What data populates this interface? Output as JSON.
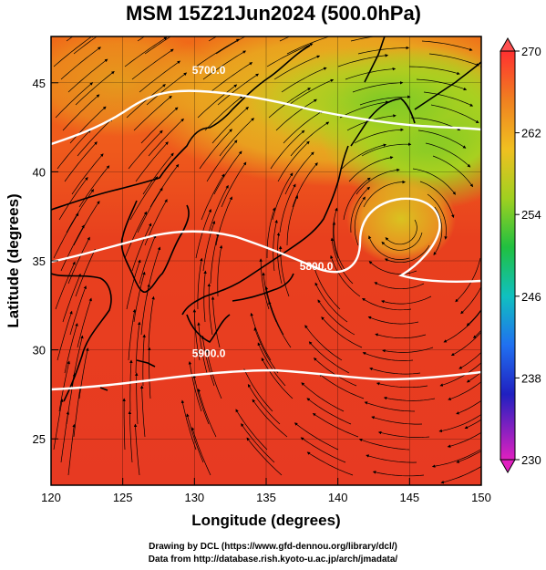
{
  "title": "MSM 15Z21Jun2024 (500.0hPa)",
  "x_axis_label": "Longitude (degrees)",
  "y_axis_label": "Latitude  (degrees)",
  "credits": [
    "Drawing by DCL (https://www.gfd-dennou.org/library/dcl/)",
    "Data from http://database.rish.kyoto-u.ac.jp/arch/jmadata/"
  ],
  "map_data": {
    "lon_range": [
      120,
      150
    ],
    "lat_range": [
      22.4,
      47.6
    ],
    "lon_ticks": [
      {
        "value": 120,
        "label": "120"
      },
      {
        "value": 125,
        "label": "125"
      },
      {
        "value": 130,
        "label": "130"
      },
      {
        "value": 135,
        "label": "135"
      },
      {
        "value": 140,
        "label": "140"
      },
      {
        "value": 145,
        "label": "145"
      },
      {
        "value": 150,
        "label": "150"
      }
    ],
    "lat_ticks": [
      {
        "value": 25,
        "label": "25"
      },
      {
        "value": 30,
        "label": "30"
      },
      {
        "value": 35,
        "label": "35"
      },
      {
        "value": 40,
        "label": "40"
      },
      {
        "value": 45,
        "label": "45"
      }
    ],
    "colorbar": {
      "min": 230,
      "max": 270,
      "labels": [
        "270",
        "262",
        "254",
        "246",
        "238",
        "230"
      ],
      "label_values": [
        270,
        262,
        254,
        246,
        238,
        230
      ]
    },
    "contour_labels": [
      {
        "text": "5700.0",
        "lon": 131,
        "lat": 45.5
      },
      {
        "text": "5800.0",
        "lon": 138.5,
        "lat": 34.5
      },
      {
        "text": "5900.0",
        "lon": 131,
        "lat": 29.6
      }
    ],
    "colors": {
      "warm": "#e83020",
      "orange": "#f07018",
      "yellow_green": "#c8d020",
      "green": "#60c020",
      "contour": "#ffffff",
      "streamline": "#000000"
    }
  }
}
